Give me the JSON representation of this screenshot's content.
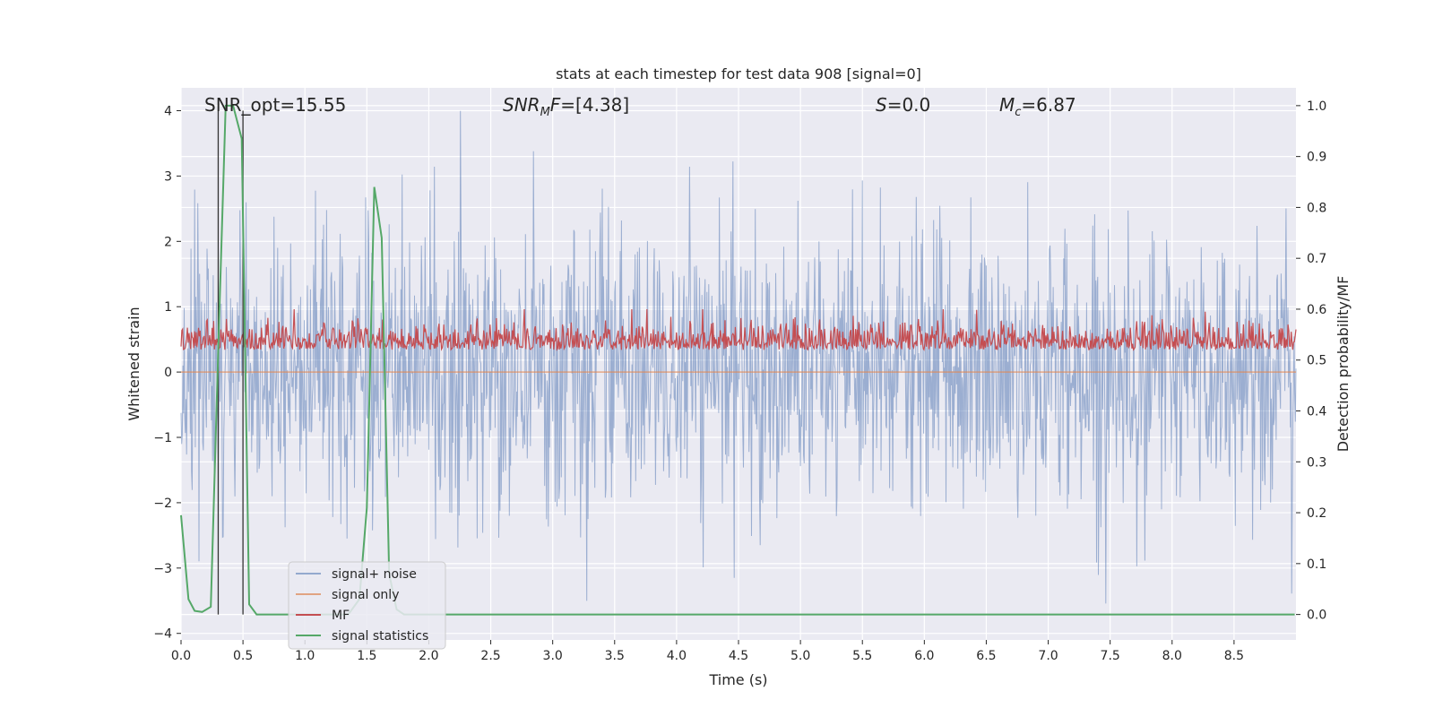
{
  "chart_data": {
    "type": "line",
    "title": "stats at each timestep for test data 908 [signal=0]",
    "xlabel": "Time (s)",
    "ylabel": "Whitened strain",
    "ylabel_right": "Detection probability/MF",
    "xlim": [
      0,
      9
    ],
    "ylim": [
      -4.1,
      4.35
    ],
    "ylim_right": [
      -0.05,
      1.035
    ],
    "x_ticks": [
      "0.0",
      "0.5",
      "1.0",
      "1.5",
      "2.0",
      "2.5",
      "3.0",
      "3.5",
      "4.0",
      "4.5",
      "5.0",
      "5.5",
      "6.0",
      "6.5",
      "7.0",
      "7.5",
      "8.0",
      "8.5"
    ],
    "y_ticks": [
      "4",
      "3",
      "2",
      "1",
      "0",
      "−1",
      "−2",
      "−3",
      "−4"
    ],
    "y_ticks_right": [
      "1.0",
      "0.9",
      "0.8",
      "0.7",
      "0.6",
      "0.5",
      "0.4",
      "0.3",
      "0.2",
      "0.1",
      "0.0"
    ],
    "grid": true,
    "legend_position": "lower-left",
    "colors": {
      "signal_noise": "#4c72b0",
      "signal_only": "#dd8452",
      "mf": "#c44e52",
      "stats": "#55a868",
      "background": "#eaeaf2",
      "grid": "#ffffff",
      "vline": "#333333"
    },
    "annotations": [
      {
        "name": "snr-opt",
        "text": "SNR_opt=15.55",
        "x": 0.2,
        "y": 4.0
      },
      {
        "name": "snr-mf",
        "text": "[4.38]",
        "prefix": "SNR",
        "sub": "M",
        "mid": "F=",
        "x": 2.6,
        "y": 4.0
      },
      {
        "name": "s-value",
        "text": "=0.0",
        "prefix": "S",
        "x": 5.6,
        "y": 4.0
      },
      {
        "name": "mc-value",
        "text": "=6.87",
        "prefix": "M",
        "sub": "c",
        "x": 6.6,
        "y": 4.0
      }
    ],
    "vertical_lines": [
      0.3,
      0.5
    ],
    "series": [
      {
        "name": "signal+ noise",
        "kind": "noise",
        "description": "dense whitened noise samples",
        "range": [
          -3.5,
          4.0
        ]
      },
      {
        "name": "signal only",
        "kind": "flat",
        "values_y": 0.0
      },
      {
        "name": "MF",
        "kind": "mf",
        "axis": "right",
        "range": [
          0.5,
          0.63
        ]
      },
      {
        "name": "signal statistics",
        "kind": "stats",
        "axis": "right",
        "x": [
          0.0,
          0.06,
          0.11,
          0.17,
          0.24,
          0.3,
          0.36,
          0.42,
          0.49,
          0.55,
          0.61,
          0.67,
          1.35,
          1.44,
          1.5,
          1.56,
          1.62,
          1.68,
          1.74,
          1.8,
          8.99
        ],
        "y": [
          0.195,
          0.03,
          0.007,
          0.005,
          0.015,
          0.52,
          1.0,
          1.0,
          0.935,
          0.02,
          0.0,
          0.0,
          0.0,
          0.03,
          0.21,
          0.84,
          0.74,
          0.08,
          0.01,
          0.0,
          0.0
        ]
      }
    ]
  }
}
